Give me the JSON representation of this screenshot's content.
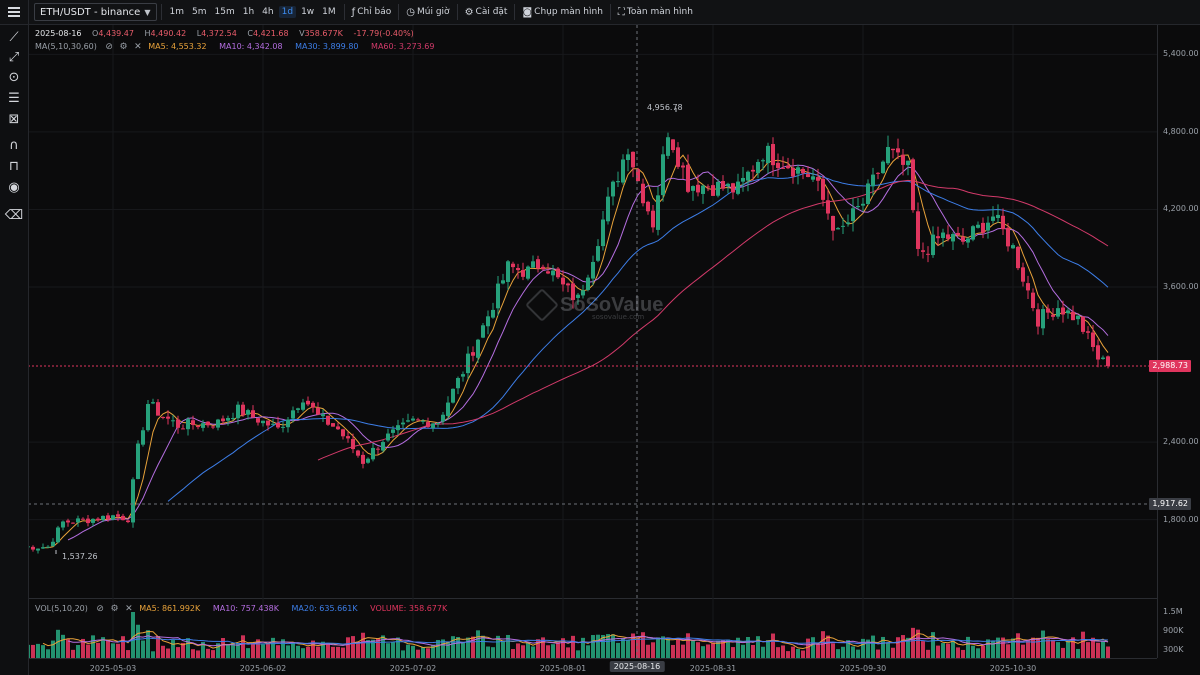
{
  "toolbar": {
    "symbol": "ETH/USDT - binance",
    "timeframes": [
      "1m",
      "5m",
      "15m",
      "1h",
      "4h",
      "1d",
      "1w",
      "1M"
    ],
    "active_timeframe": "1d",
    "indicator_btn": "Chỉ báo",
    "timezone_btn": "Múi giờ",
    "settings_btn": "Cài đặt",
    "screenshot_btn": "Chụp màn hình",
    "fullscreen_btn": "Toàn màn hình"
  },
  "legend": {
    "date": "2025-08-16",
    "open": "4,439.47",
    "high": "4,490.42",
    "low": "4,372.54",
    "close": "4,421.68",
    "volume": "358.677K",
    "change": "-17.79(-0.40%)",
    "ma_title": "MA(5,10,30,60)",
    "ma5": "MA5: 4,553.32",
    "ma10": "MA10: 4,342.08",
    "ma30": "MA30: 3,899.80",
    "ma60": "MA60: 3,273.69",
    "o_prefix": "O",
    "h_prefix": "H",
    "l_prefix": "L",
    "c_prefix": "C",
    "v_prefix": "V"
  },
  "vol_legend": {
    "title": "VOL(5,10,20)",
    "ma5": "MA5: 861.992K",
    "ma10": "MA10: 757.438K",
    "ma20": "MA20: 635.661K",
    "volume": "VOLUME: 358.677K"
  },
  "price_axis": [
    "5,400.00",
    "4,800.00",
    "4,200.00",
    "3,600.00",
    "2,400.00",
    "1,800.00"
  ],
  "volume_axis": [
    "1.5M",
    "900K",
    "300K"
  ],
  "current_price": "2,988.73",
  "crosshair_price": "1,917.62",
  "high_marker": "4,956.78",
  "low_marker": "1,537.26",
  "date_axis": [
    "2025-05-03",
    "2025-06-02",
    "2025-07-02",
    "2025-08-01",
    "2025-08-31",
    "2025-09-30",
    "2025-10-30"
  ],
  "crosshair_date": "2025-08-16",
  "watermark": {
    "brand": "SoSoValue",
    "sub": "sosovalue.com"
  },
  "colors": {
    "up": "#26a17b",
    "down": "#e0355e",
    "ma5": "#e8a23a",
    "ma10": "#b46ee0",
    "ma30": "#3d7ee8",
    "ma60": "#d23a6a"
  },
  "chart_data": {
    "type": "candlestick",
    "x_start": "2025-04-15",
    "x_interval": "1d",
    "ylim": [
      1500,
      5560
    ],
    "ohlc_close_waypoints": [
      [
        "2025-04-15",
        1590
      ],
      [
        "2025-04-20",
        1590
      ],
      [
        "2025-04-23",
        1780
      ],
      [
        "2025-04-28",
        1800
      ],
      [
        "2025-05-03",
        1830
      ],
      [
        "2025-05-06",
        1810
      ],
      [
        "2025-05-08",
        2350
      ],
      [
        "2025-05-10",
        2700
      ],
      [
        "2025-05-13",
        2600
      ],
      [
        "2025-05-16",
        2530
      ],
      [
        "2025-05-24",
        2550
      ],
      [
        "2025-05-28",
        2650
      ],
      [
        "2025-06-05",
        2500
      ],
      [
        "2025-06-10",
        2750
      ],
      [
        "2025-06-13",
        2600
      ],
      [
        "2025-06-17",
        2500
      ],
      [
        "2025-06-22",
        2250
      ],
      [
        "2025-06-26",
        2420
      ],
      [
        "2025-07-02",
        2560
      ],
      [
        "2025-07-07",
        2560
      ],
      [
        "2025-07-12",
        2950
      ],
      [
        "2025-07-17",
        3380
      ],
      [
        "2025-07-21",
        3750
      ],
      [
        "2025-07-25",
        3720
      ],
      [
        "2025-07-28",
        3800
      ],
      [
        "2025-08-01",
        3600
      ],
      [
        "2025-08-04",
        3500
      ],
      [
        "2025-08-07",
        3850
      ],
      [
        "2025-08-10",
        4250
      ],
      [
        "2025-08-14",
        4700
      ],
      [
        "2025-08-16",
        4421
      ],
      [
        "2025-08-19",
        4100
      ],
      [
        "2025-08-22",
        4820
      ],
      [
        "2025-08-26",
        4400
      ],
      [
        "2025-08-31",
        4380
      ],
      [
        "2025-09-05",
        4350
      ],
      [
        "2025-09-10",
        4650
      ],
      [
        "2025-09-15",
        4550
      ],
      [
        "2025-09-20",
        4450
      ],
      [
        "2025-09-25",
        4000
      ],
      [
        "2025-09-30",
        4250
      ],
      [
        "2025-10-05",
        4650
      ],
      [
        "2025-10-09",
        4500
      ],
      [
        "2025-10-11",
        3850
      ],
      [
        "2025-10-16",
        4000
      ],
      [
        "2025-10-20",
        3950
      ],
      [
        "2025-10-26",
        4150
      ],
      [
        "2025-10-30",
        3900
      ],
      [
        "2025-11-04",
        3350
      ],
      [
        "2025-11-08",
        3450
      ],
      [
        "2025-11-12",
        3350
      ],
      [
        "2025-11-16",
        3050
      ],
      [
        "2025-11-18",
        2988
      ]
    ]
  }
}
